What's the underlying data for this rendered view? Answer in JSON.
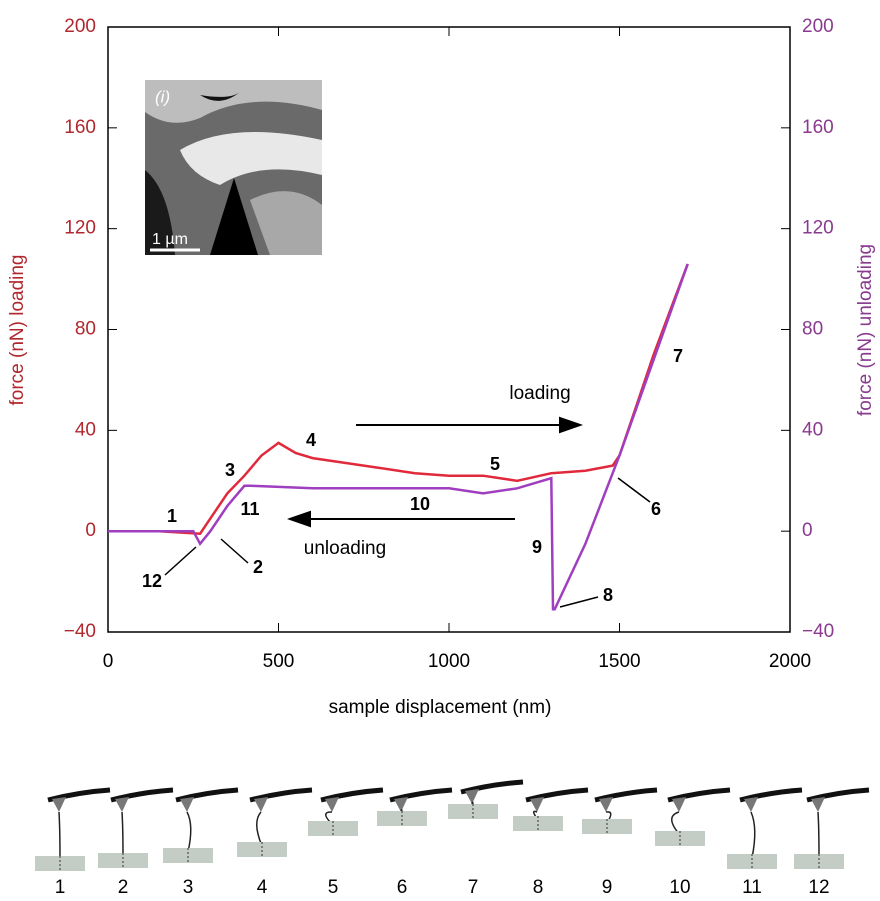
{
  "chart_data": {
    "type": "line",
    "xlabel": "sample displacement (nm)",
    "ylabel": "force (nN) loading",
    "y2label": "force (nN) unloading",
    "xlim": [
      0,
      2000
    ],
    "xticks": [
      0,
      500,
      1000,
      1500,
      2000
    ],
    "ylim": [
      -40,
      200
    ],
    "yticks": [
      {
        "value": -40,
        "label": "−40"
      },
      0,
      40,
      80,
      120,
      160,
      200
    ],
    "y2lim": [
      -40,
      200
    ],
    "y2ticks": [
      {
        "value": -40,
        "label": "−40"
      },
      0,
      40,
      80,
      120,
      160,
      200
    ],
    "ycolor": "#b0282e",
    "y2color": "#8a3a8e",
    "series": [
      {
        "color": "#e02a3c",
        "x": [
          0,
          150,
          270,
          300,
          350,
          400,
          450,
          500,
          550,
          600,
          700,
          800,
          900,
          1000,
          1100,
          1200,
          1300,
          1400,
          1480,
          1500,
          1550,
          1600,
          1650,
          1700
        ],
        "values": [
          0,
          0,
          -1,
          5,
          15,
          22,
          30,
          35,
          31,
          29,
          27,
          25,
          23,
          22,
          22,
          20,
          23,
          24,
          26,
          30,
          50,
          70,
          88,
          106
        ]
      },
      {
        "color": "#a03ec0",
        "axis": "y2",
        "x": [
          1700,
          1600,
          1500,
          1400,
          1310,
          1305,
          1300,
          1200,
          1100,
          1000,
          800,
          600,
          420,
          400,
          350,
          300,
          270,
          250,
          150,
          0
        ],
        "values": [
          106,
          68,
          30,
          -5,
          -31,
          -31,
          21,
          17,
          15,
          17,
          17,
          17,
          18,
          18,
          10,
          0,
          -5,
          0,
          0,
          0
        ]
      }
    ],
    "annotations": [
      "1",
      "2",
      "3",
      "4",
      "5",
      "6",
      "7",
      "8",
      "9",
      "10",
      "11",
      "12",
      "loading",
      "unloading"
    ],
    "inset_label": "(i)",
    "inset_scale": "1 µm",
    "schematic_labels": [
      "1",
      "2",
      "3",
      "4",
      "5",
      "6",
      "7",
      "8",
      "9",
      "10",
      "11",
      "12"
    ]
  }
}
